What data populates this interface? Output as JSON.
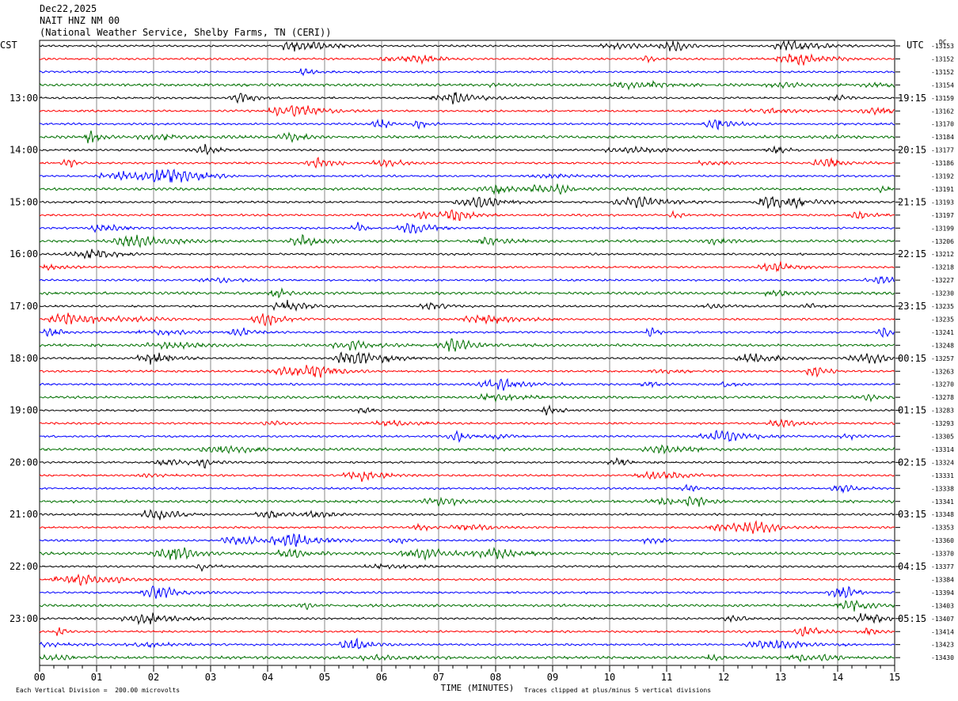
{
  "header": {
    "date": "Dec22,2025",
    "station": "NAIT HNZ NM 00",
    "network": "(National Weather Service, Shelby Farms, TN (CERI))"
  },
  "left_tz": "CST",
  "right_tz": "UTC",
  "dc_label": "DC",
  "footer": {
    "left": "Each Vertical Division =  200.00 microvolts",
    "right": "Traces clipped at plus/minus 5 vertical divisions"
  },
  "colors": {
    "traces": [
      "#000000",
      "#ff0000",
      "#0000ff",
      "#007000"
    ],
    "grid": "#888888"
  },
  "chart_data": {
    "type": "line",
    "title": "",
    "xlabel": "TIME (MINUTES)",
    "xlim": [
      0,
      15
    ],
    "x_ticks": [
      "00",
      "01",
      "02",
      "03",
      "04",
      "05",
      "06",
      "07",
      "08",
      "09",
      "10",
      "11",
      "12",
      "13",
      "14",
      "15"
    ],
    "traces_per_hour": 4,
    "left_hour_labels": [
      "13:00",
      "14:00",
      "15:00",
      "16:00",
      "17:00",
      "18:00",
      "19:00",
      "20:00",
      "21:00",
      "22:00",
      "23:00"
    ],
    "right_hour_labels": [
      "19:15",
      "20:15",
      "21:15",
      "22:15",
      "23:15",
      "00:15",
      "01:15",
      "02:15",
      "03:15",
      "04:15",
      "05:15"
    ],
    "dc_offsets": [
      "-13153",
      "-13152",
      "-13152",
      "-13154",
      "-13159",
      "-13162",
      "-13170",
      "-13184",
      "-13177",
      "-13186",
      "-13192",
      "-13191",
      "-13193",
      "-13197",
      "-13199",
      "-13206",
      "-13212",
      "-13218",
      "-13227",
      "-13230",
      "-13235",
      "-13235",
      "-13241",
      "-13248",
      "-13257",
      "-13263",
      "-13270",
      "-13278",
      "-13283",
      "-13293",
      "-13305",
      "-13314",
      "-13324",
      "-13331",
      "-13338",
      "-13341",
      "-13348",
      "-13353",
      "-13360",
      "-13370",
      "-13377",
      "-13384",
      "-13394",
      "-13403",
      "-13407",
      "-13414",
      "-13423",
      "-13430"
    ]
  }
}
